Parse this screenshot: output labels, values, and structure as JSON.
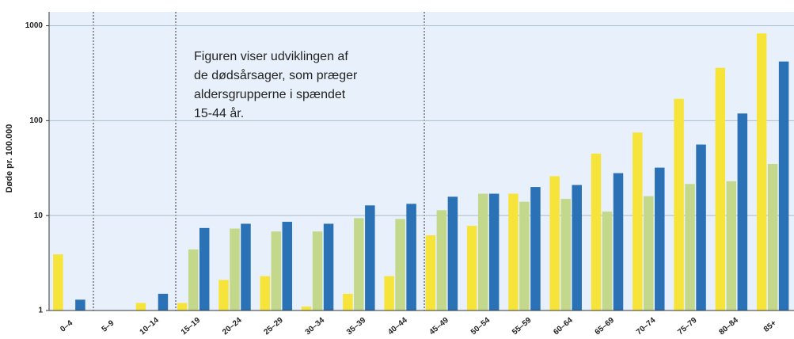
{
  "chart_data": {
    "type": "bar",
    "y_label": "Døde pr. 100.000",
    "annotation": [
      "Figuren viser udviklingen af",
      "de dødsårsager, som præger",
      "aldersgrupperne i spændet",
      "15-44 år."
    ],
    "categories": [
      "0–4",
      "5–9",
      "10–14",
      "15–19",
      "20–24",
      "25–29",
      "30–34",
      "35–39",
      "40–44",
      "45–49",
      "50–54",
      "55–59",
      "60–64",
      "65–69",
      "70–74",
      "75–79",
      "80–84",
      "85+"
    ],
    "series": [
      {
        "color": "#f7e43a",
        "values": [
          3.9,
          null,
          1.2,
          1.2,
          2.1,
          2.3,
          1.1,
          1.5,
          2.3,
          6.2,
          7.8,
          17,
          26,
          45,
          75,
          170,
          360,
          830
        ]
      },
      {
        "color": "#c3d88b",
        "values": [
          null,
          null,
          null,
          4.4,
          7.3,
          6.8,
          6.8,
          9.4,
          9.2,
          11.4,
          17,
          14,
          15,
          11,
          16,
          21.5,
          23,
          35
        ]
      },
      {
        "color": "#2a72b5",
        "values": [
          1.3,
          null,
          1.5,
          7.4,
          8.2,
          8.6,
          8.2,
          12.8,
          13.3,
          15.8,
          17,
          20,
          21,
          28,
          32,
          56,
          119,
          420
        ]
      }
    ],
    "log_scale": true,
    "ylim": [
      1,
      1400
    ],
    "yticks": [
      1,
      10,
      100,
      1000
    ],
    "grid": true
  }
}
